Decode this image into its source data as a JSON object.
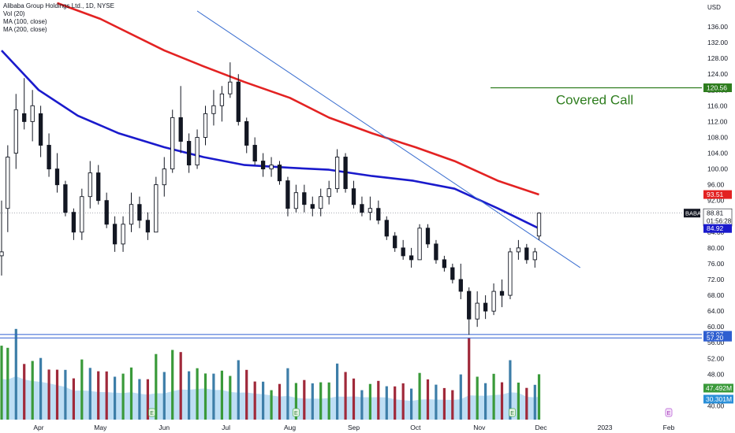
{
  "header": {
    "title": "Alibaba Group Holdings Ltd., 1D, NYSE",
    "indicators": [
      "Vol (20)",
      "MA (100, close)",
      "MA (200, close)"
    ],
    "currency": "USD"
  },
  "annotations": {
    "covered_call_label": "Covered Call",
    "covered_call_price": "120.56",
    "ticker_badge": "BABA"
  },
  "tags": {
    "ma200": "93.51",
    "last_price": "88.81",
    "countdown": "01:56:28",
    "ma100": "84.92",
    "support_high": "58.07",
    "support_low": "57.20",
    "volume": "47.492M",
    "volume_ma": "30.301M"
  },
  "colors": {
    "ma100": "#1a1acc",
    "ma200": "#e32222",
    "trendline": "#3b6fd0",
    "covered_call": "#2e7d1e",
    "support": "#2f5fd0",
    "candle": "#131722",
    "vol_up": "#3a9a3a",
    "vol_down": "#a0293a",
    "vol_neutral": "#3d7ea8",
    "vol_ma_area": "#a8d3f0"
  },
  "chart_data": {
    "type": "candlestick",
    "symbol": "BABA",
    "interval": "1D",
    "exchange": "NYSE",
    "y_axis_ticks": [
      "136.00",
      "132.00",
      "128.00",
      "124.00",
      "120.00",
      "116.00",
      "112.00",
      "108.00",
      "104.00",
      "100.00",
      "96.00",
      "92.00",
      "88.00",
      "84.00",
      "80.00",
      "76.00",
      "72.00",
      "68.00",
      "64.00",
      "60.00",
      "56.00",
      "52.00",
      "48.00",
      "44.00",
      "40.00"
    ],
    "ylim": [
      39.5,
      138.4
    ],
    "x_axis_labels": [
      "Apr",
      "May",
      "Jun",
      "Jul",
      "Aug",
      "Sep",
      "Oct",
      "Nov",
      "Dec",
      "2023",
      "Feb"
    ],
    "last_price": 88.81,
    "ma100_last": 84.92,
    "ma200_last": 93.51,
    "covered_call_level": 120.56,
    "support_levels": [
      58.07,
      57.2
    ],
    "ma100_series": [
      {
        "date": "Mar 14",
        "value": 130
      },
      {
        "date": "Apr 1",
        "value": 120
      },
      {
        "date": "Apr 20",
        "value": 113.5
      },
      {
        "date": "May 10",
        "value": 109
      },
      {
        "date": "Jun 1",
        "value": 105.5
      },
      {
        "date": "Jun 20",
        "value": 103
      },
      {
        "date": "Jul 10",
        "value": 101
      },
      {
        "date": "Aug 1",
        "value": 100.3
      },
      {
        "date": "Aug 20",
        "value": 99.8
      },
      {
        "date": "Sep 10",
        "value": 98.2
      },
      {
        "date": "Sep 30",
        "value": 97
      },
      {
        "date": "Oct 20",
        "value": 95
      },
      {
        "date": "Nov 10",
        "value": 90
      },
      {
        "date": "Nov 30",
        "value": 84.92
      }
    ],
    "ma200_series": [
      {
        "date": "Apr 10",
        "value": 142
      },
      {
        "date": "May 1",
        "value": 138
      },
      {
        "date": "Jun 1",
        "value": 130
      },
      {
        "date": "Jun 20",
        "value": 126
      },
      {
        "date": "Jul 10",
        "value": 122
      },
      {
        "date": "Aug 1",
        "value": 118
      },
      {
        "date": "Aug 20",
        "value": 113
      },
      {
        "date": "Sep 10",
        "value": 109
      },
      {
        "date": "Oct 1",
        "value": 105.5
      },
      {
        "date": "Oct 20",
        "value": 102
      },
      {
        "date": "Nov 10",
        "value": 97
      },
      {
        "date": "Nov 30",
        "value": 93.51
      }
    ],
    "trendline": [
      {
        "date": "Jun 17",
        "value": 140
      },
      {
        "date": "Dec 20",
        "value": 75
      }
    ],
    "candles": [
      {
        "date": "Mar 14",
        "open": 78,
        "high": 92,
        "low": 73,
        "close": 79
      },
      {
        "date": "Mar 17",
        "open": 90,
        "high": 106,
        "low": 84,
        "close": 103
      },
      {
        "date": "Mar 21",
        "open": 104,
        "high": 119,
        "low": 100,
        "close": 115
      },
      {
        "date": "Mar 25",
        "open": 114,
        "high": 123,
        "low": 110,
        "close": 112
      },
      {
        "date": "Mar 29",
        "open": 112,
        "high": 120,
        "low": 107,
        "close": 116
      },
      {
        "date": "Apr 2",
        "open": 114,
        "high": 116,
        "low": 103,
        "close": 106
      },
      {
        "date": "Apr 6",
        "open": 106,
        "high": 109,
        "low": 98,
        "close": 100
      },
      {
        "date": "Apr 10",
        "open": 100,
        "high": 104,
        "low": 94,
        "close": 96
      },
      {
        "date": "Apr 14",
        "open": 96,
        "high": 97,
        "low": 88,
        "close": 89
      },
      {
        "date": "Apr 18",
        "open": 89,
        "high": 90,
        "low": 82,
        "close": 84
      },
      {
        "date": "Apr 22",
        "open": 84,
        "high": 95,
        "low": 82,
        "close": 93
      },
      {
        "date": "Apr 26",
        "open": 93,
        "high": 102,
        "low": 90,
        "close": 99
      },
      {
        "date": "Apr 30",
        "open": 99,
        "high": 101,
        "low": 91,
        "close": 92
      },
      {
        "date": "May 4",
        "open": 92,
        "high": 94,
        "low": 85,
        "close": 86
      },
      {
        "date": "May 8",
        "open": 86,
        "high": 88,
        "low": 79,
        "close": 81
      },
      {
        "date": "May 12",
        "open": 81,
        "high": 88,
        "low": 79,
        "close": 86
      },
      {
        "date": "May 16",
        "open": 86,
        "high": 94,
        "low": 84,
        "close": 91
      },
      {
        "date": "May 20",
        "open": 91,
        "high": 93,
        "low": 85,
        "close": 87
      },
      {
        "date": "May 24",
        "open": 87,
        "high": 89,
        "low": 82,
        "close": 84
      },
      {
        "date": "May 28",
        "open": 84,
        "high": 98,
        "low": 84,
        "close": 96
      },
      {
        "date": "Jun 1",
        "open": 96,
        "high": 103,
        "low": 93,
        "close": 100
      },
      {
        "date": "Jun 5",
        "open": 100,
        "high": 115,
        "low": 99,
        "close": 113
      },
      {
        "date": "Jun 9",
        "open": 113,
        "high": 121,
        "low": 104,
        "close": 107
      },
      {
        "date": "Jun 13",
        "open": 107,
        "high": 109,
        "low": 99,
        "close": 101
      },
      {
        "date": "Jun 17",
        "open": 101,
        "high": 110,
        "low": 100,
        "close": 108
      },
      {
        "date": "Jun 21",
        "open": 108,
        "high": 116,
        "low": 106,
        "close": 114
      },
      {
        "date": "Jun 25",
        "open": 114,
        "high": 120,
        "low": 111,
        "close": 116
      },
      {
        "date": "Jun 29",
        "open": 116,
        "high": 121,
        "low": 112,
        "close": 119
      },
      {
        "date": "Jul 3",
        "open": 119,
        "high": 127,
        "low": 118,
        "close": 122
      },
      {
        "date": "Jul 7",
        "open": 122,
        "high": 124,
        "low": 111,
        "close": 112
      },
      {
        "date": "Jul 11",
        "open": 112,
        "high": 113,
        "low": 104,
        "close": 106
      },
      {
        "date": "Jul 15",
        "open": 106,
        "high": 108,
        "low": 101,
        "close": 102
      },
      {
        "date": "Jul 19",
        "open": 102,
        "high": 104,
        "low": 98,
        "close": 100
      },
      {
        "date": "Jul 23",
        "open": 100,
        "high": 103,
        "low": 98,
        "close": 101
      },
      {
        "date": "Jul 27",
        "open": 101,
        "high": 102,
        "low": 96,
        "close": 97
      },
      {
        "date": "Jul 31",
        "open": 97,
        "high": 98,
        "low": 88,
        "close": 90
      },
      {
        "date": "Aug 4",
        "open": 90,
        "high": 96,
        "low": 89,
        "close": 94
      },
      {
        "date": "Aug 8",
        "open": 94,
        "high": 96,
        "low": 89,
        "close": 91
      },
      {
        "date": "Aug 12",
        "open": 91,
        "high": 93,
        "low": 88,
        "close": 90
      },
      {
        "date": "Aug 16",
        "open": 90,
        "high": 95,
        "low": 88,
        "close": 93
      },
      {
        "date": "Aug 20",
        "open": 93,
        "high": 97,
        "low": 91,
        "close": 95
      },
      {
        "date": "Aug 24",
        "open": 95,
        "high": 105,
        "low": 94,
        "close": 103
      },
      {
        "date": "Aug 28",
        "open": 103,
        "high": 104,
        "low": 94,
        "close": 95
      },
      {
        "date": "Sep 1",
        "open": 95,
        "high": 97,
        "low": 90,
        "close": 91
      },
      {
        "date": "Sep 5",
        "open": 91,
        "high": 93,
        "low": 88,
        "close": 89
      },
      {
        "date": "Sep 9",
        "open": 89,
        "high": 93,
        "low": 87,
        "close": 90
      },
      {
        "date": "Sep 13",
        "open": 90,
        "high": 92,
        "low": 86,
        "close": 87
      },
      {
        "date": "Sep 17",
        "open": 87,
        "high": 88,
        "low": 82,
        "close": 83
      },
      {
        "date": "Sep 21",
        "open": 83,
        "high": 84,
        "low": 79,
        "close": 80
      },
      {
        "date": "Sep 25",
        "open": 80,
        "high": 82,
        "low": 77,
        "close": 78
      },
      {
        "date": "Sep 29",
        "open": 78,
        "high": 80,
        "low": 75,
        "close": 77
      },
      {
        "date": "Oct 3",
        "open": 77,
        "high": 86,
        "low": 77,
        "close": 85
      },
      {
        "date": "Oct 7",
        "open": 85,
        "high": 86,
        "low": 80,
        "close": 81
      },
      {
        "date": "Oct 11",
        "open": 81,
        "high": 82,
        "low": 76,
        "close": 77
      },
      {
        "date": "Oct 15",
        "open": 77,
        "high": 78,
        "low": 74,
        "close": 75
      },
      {
        "date": "Oct 19",
        "open": 75,
        "high": 76,
        "low": 71,
        "close": 72
      },
      {
        "date": "Oct 23",
        "open": 72,
        "high": 76,
        "low": 67,
        "close": 69
      },
      {
        "date": "Oct 27",
        "open": 69,
        "high": 70,
        "low": 58,
        "close": 62
      },
      {
        "date": "Oct 31",
        "open": 62,
        "high": 69,
        "low": 60,
        "close": 66
      },
      {
        "date": "Nov 4",
        "open": 66,
        "high": 68,
        "low": 62,
        "close": 64
      },
      {
        "date": "Nov 8",
        "open": 64,
        "high": 71,
        "low": 63,
        "close": 69
      },
      {
        "date": "Nov 12",
        "open": 69,
        "high": 72,
        "low": 65,
        "close": 68
      },
      {
        "date": "Nov 16",
        "open": 68,
        "high": 80,
        "low": 67,
        "close": 79
      },
      {
        "date": "Nov 20",
        "open": 79,
        "high": 82,
        "low": 77,
        "close": 80
      },
      {
        "date": "Nov 24",
        "open": 80,
        "high": 81,
        "low": 76,
        "close": 77
      },
      {
        "date": "Nov 28",
        "open": 77,
        "high": 80,
        "low": 75,
        "close": 79
      },
      {
        "date": "Nov 30",
        "open": 83,
        "high": 89,
        "low": 82,
        "close": 88.81
      }
    ]
  }
}
